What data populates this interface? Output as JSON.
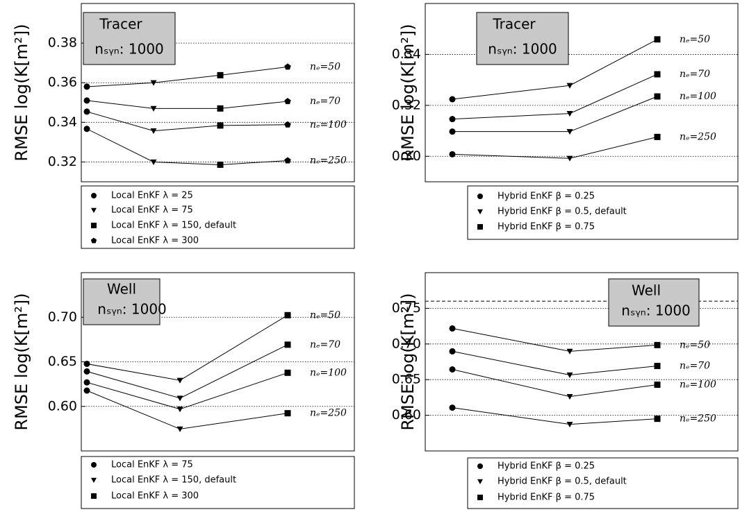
{
  "chart_data": [
    {
      "type": "line",
      "title": "Tracer",
      "subtitle": "nₛᵧₙ: 1000",
      "y_label": "RMSE  log(K[m²])",
      "categories": [
        "Local EnKF λ = 25",
        "Local EnKF λ = 75",
        "Local EnKF λ = 150, default",
        "Local EnKF λ = 300"
      ],
      "markers": [
        "circle",
        "triangle-down",
        "square",
        "pentagon"
      ],
      "color": "#000000",
      "series": [
        {
          "name": "nₑ=50",
          "values": [
            0.358,
            0.36,
            0.3638,
            0.368
          ]
        },
        {
          "name": "nₑ=70",
          "values": [
            0.351,
            0.347,
            0.347,
            0.3506
          ]
        },
        {
          "name": "nₑ=100",
          "values": [
            0.3454,
            0.3357,
            0.3384,
            0.3388
          ]
        },
        {
          "name": "nₑ=250",
          "values": [
            0.3367,
            0.32,
            0.3186,
            0.3207
          ]
        }
      ],
      "ylim": [
        0.31,
        0.4
      ],
      "yticks": [
        0.32,
        0.34,
        0.36,
        0.38
      ],
      "grid": true
    },
    {
      "type": "line",
      "title": "Tracer",
      "subtitle": "nₛᵧₙ: 1000",
      "y_label": "RMSE  log(K[m²])",
      "categories": [
        "Hybrid EnKF β = 0.25",
        "Hybrid EnKF β = 0.5, default",
        "Hybrid EnKF β = 0.75"
      ],
      "markers": [
        "circle",
        "triangle-down",
        "square"
      ],
      "color": "#000000",
      "series": [
        {
          "name": "nₑ=50",
          "values": [
            0.3224,
            0.3278,
            0.3459
          ]
        },
        {
          "name": "nₑ=70",
          "values": [
            0.3146,
            0.3168,
            0.3322
          ]
        },
        {
          "name": "nₑ=100",
          "values": [
            0.3097,
            0.3097,
            0.3235
          ]
        },
        {
          "name": "nₑ=250",
          "values": [
            0.3008,
            0.2992,
            0.3076
          ]
        }
      ],
      "ylim": [
        0.29,
        0.36
      ],
      "yticks": [
        {
          "value": 0.3,
          "label": "0.30"
        },
        0.32,
        0.34
      ],
      "grid": true
    },
    {
      "type": "line",
      "title": "Well",
      "subtitle": "nₛᵧₙ: 1000",
      "y_label": "RMSE  log(K[m²])",
      "categories": [
        "Local EnKF λ = 75",
        "Local EnKF λ = 150, default",
        "Local EnKF λ = 300"
      ],
      "markers": [
        "circle",
        "triangle-down",
        "square"
      ],
      "color": "#000000",
      "series": [
        {
          "name": "nₑ=50",
          "values": [
            0.6477,
            0.6292,
            0.7023
          ]
        },
        {
          "name": "nₑ=70",
          "values": [
            0.6392,
            0.6092,
            0.6692
          ]
        },
        {
          "name": "nₑ=100",
          "values": [
            0.6269,
            0.5969,
            0.6377
          ]
        },
        {
          "name": "nₑ=250",
          "values": [
            0.6177,
            0.5746,
            0.5923
          ]
        }
      ],
      "ylim": [
        0.55,
        0.75
      ],
      "yticks": [
        {
          "value": 0.6,
          "label": "0.60"
        },
        0.65,
        {
          "value": 0.7,
          "label": "0.70"
        }
      ],
      "grid": true
    },
    {
      "type": "line",
      "title": "Well",
      "subtitle": "nₛᵧₙ: 1000",
      "y_label": "RMSE  log(K[m²])",
      "categories": [
        "Hybrid EnKF β = 0.25",
        "Hybrid EnKF β = 0.5, default",
        "Hybrid EnKF β = 0.75"
      ],
      "markers": [
        "circle",
        "triangle-down",
        "square"
      ],
      "color": "#000000",
      "series": [
        {
          "name": "nₑ=50",
          "values": [
            0.7218,
            0.6897,
            0.6985
          ]
        },
        {
          "name": "nₑ=70",
          "values": [
            0.6897,
            0.6565,
            0.6692
          ]
        },
        {
          "name": "nₑ=100",
          "values": [
            0.6643,
            0.6263,
            0.6429
          ]
        },
        {
          "name": "nₑ=250",
          "values": [
            0.6107,
            0.5873,
            0.5951
          ]
        }
      ],
      "ylim": [
        0.55,
        0.8
      ],
      "yticks": [
        {
          "value": 0.6,
          "label": "0.60"
        },
        0.65,
        {
          "value": 0.7,
          "label": "0.70"
        },
        0.75
      ],
      "grid": true,
      "hline": 0.76
    }
  ]
}
